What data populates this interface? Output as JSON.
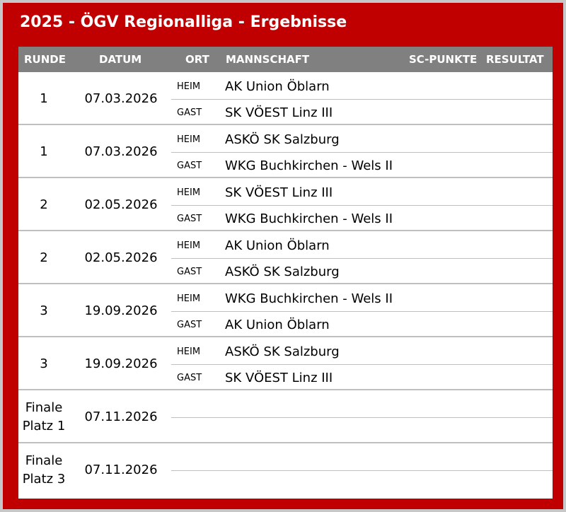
{
  "title": "2025 - ÖGV Regionalliga - Ergebnisse",
  "headers": {
    "runde": "RUNDE",
    "datum": "DATUM",
    "ort": "ORT",
    "mannschaft": "MANNSCHAFT",
    "sc_punkte": "SC-PUNKTE",
    "resultat": "RESULTAT"
  },
  "matches": [
    {
      "runde": "1",
      "datum": "07.03.2026",
      "heim_label": "HEIM",
      "heim": "AK Union Öblarn",
      "gast_label": "GAST",
      "gast": "SK VÖEST Linz III"
    },
    {
      "runde": "1",
      "datum": "07.03.2026",
      "heim_label": "HEIM",
      "heim": "ASKÖ SK Salzburg",
      "gast_label": "GAST",
      "gast": "WKG Buchkirchen - Wels II"
    },
    {
      "runde": "2",
      "datum": "02.05.2026",
      "heim_label": "HEIM",
      "heim": "SK VÖEST Linz III",
      "gast_label": "GAST",
      "gast": "WKG Buchkirchen - Wels II"
    },
    {
      "runde": "2",
      "datum": "02.05.2026",
      "heim_label": "HEIM",
      "heim": "AK Union Öblarn",
      "gast_label": "GAST",
      "gast": "ASKÖ SK Salzburg"
    },
    {
      "runde": "3",
      "datum": "19.09.2026",
      "heim_label": "HEIM",
      "heim": "WKG Buchkirchen - Wels II",
      "gast_label": "GAST",
      "gast": "AK Union Öblarn"
    },
    {
      "runde": "3",
      "datum": "19.09.2026",
      "heim_label": "HEIM",
      "heim": "ASKÖ SK Salzburg",
      "gast_label": "GAST",
      "gast": "SK VÖEST Linz III"
    },
    {
      "runde_line1": "Finale",
      "runde_line2": "Platz 1",
      "datum": "07.11.2026"
    },
    {
      "runde_line1": "Finale",
      "runde_line2": "Platz 3",
      "datum": "07.11.2026"
    }
  ],
  "colors": {
    "frame": "#c00000",
    "header": "#808080",
    "grid": "#bfbfbf"
  }
}
